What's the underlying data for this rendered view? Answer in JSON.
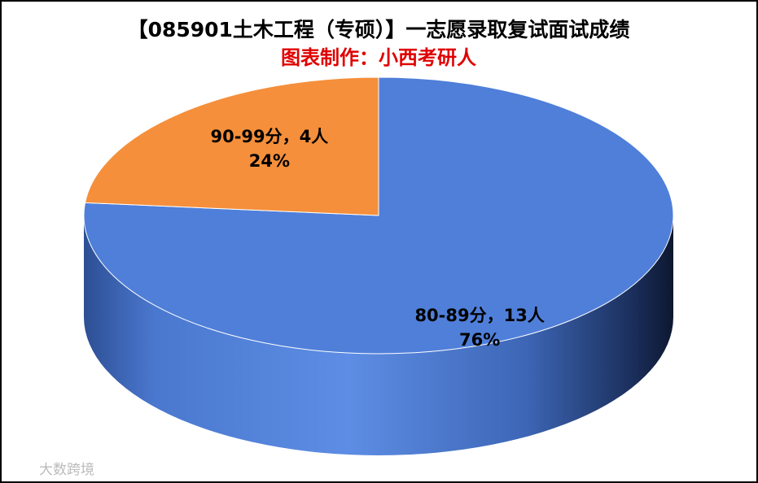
{
  "chart_data": {
    "type": "pie3d",
    "title": "【085901土木工程（专硕）】一志愿录取复试面试成绩",
    "subtitle": "图表制作：小西考研人",
    "labels": [
      "80-89分，13人",
      "90-99分，4人"
    ],
    "values": [
      13,
      4
    ],
    "percent_labels": [
      "76%",
      "24%"
    ],
    "colors": [
      "#4f7fd9",
      "#f58f3b"
    ],
    "watermark": "大数跨境"
  }
}
